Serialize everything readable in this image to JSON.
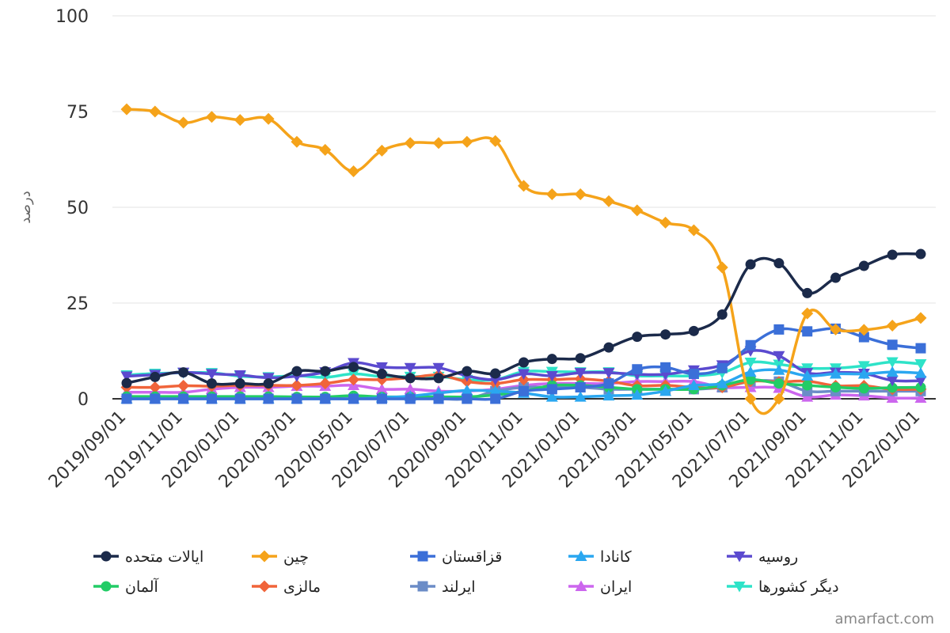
{
  "chart_data": {
    "type": "line",
    "title": "",
    "xlabel": "",
    "ylabel": "درصد",
    "ylim": [
      0,
      100
    ],
    "yticks": [
      0,
      25,
      50,
      75,
      100
    ],
    "grid": true,
    "legend_position": "bottom",
    "credit": "amarfact.com",
    "x": [
      "2019/09/01",
      "2019/10/01",
      "2019/11/01",
      "2019/12/01",
      "2020/01/01",
      "2020/02/01",
      "2020/03/01",
      "2020/04/01",
      "2020/05/01",
      "2020/06/01",
      "2020/07/01",
      "2020/08/01",
      "2020/09/01",
      "2020/10/01",
      "2020/11/01",
      "2020/12/01",
      "2021/01/01",
      "2021/02/01",
      "2021/03/01",
      "2021/04/01",
      "2021/05/01",
      "2021/06/01",
      "2021/07/01",
      "2021/08/01",
      "2021/09/01",
      "2021/10/01",
      "2021/11/01",
      "2021/12/01",
      "2022/01/01"
    ],
    "xtick_labels": [
      "2019/09/01",
      "2019/11/01",
      "2020/01/01",
      "2020/03/01",
      "2020/05/01",
      "2020/07/01",
      "2020/09/01",
      "2020/11/01",
      "2021/01/01",
      "2021/03/01",
      "2021/05/01",
      "2021/07/01",
      "2021/09/01",
      "2021/11/01",
      "2022/01/01"
    ],
    "series": [
      {
        "name": "ایالات متحده",
        "color": "#1b2a4a",
        "marker": "circle",
        "values": [
          4.1,
          5.7,
          6.9,
          4.0,
          4.0,
          4.0,
          7.2,
          7.2,
          8.3,
          6.5,
          5.4,
          5.4,
          7.2,
          6.6,
          9.5,
          10.4,
          10.6,
          13.4,
          16.2,
          16.8,
          17.7,
          22.0,
          35.1,
          35.4,
          27.6,
          31.6,
          34.7,
          37.6,
          37.8
        ]
      },
      {
        "name": "چین",
        "color": "#f5a31a",
        "marker": "diamond",
        "values": [
          75.6,
          75.0,
          72.1,
          73.6,
          72.8,
          73.1,
          67.1,
          65.0,
          59.4,
          64.8,
          66.8,
          66.8,
          67.1,
          67.3,
          55.6,
          53.4,
          53.4,
          51.6,
          49.2,
          46.0,
          44.0,
          34.3,
          0.0,
          0.0,
          22.3,
          18.1,
          18.0,
          19.1,
          21.1
        ]
      },
      {
        "name": "قزاقستان",
        "color": "#3b6fd8",
        "marker": "square",
        "values": [
          0.0,
          0.0,
          0.0,
          0.0,
          0.0,
          0.0,
          0.0,
          0.0,
          0.0,
          0.0,
          0.0,
          0.0,
          0.0,
          0.0,
          2.0,
          2.5,
          3.0,
          4.0,
          7.7,
          8.2,
          6.5,
          8.0,
          14.0,
          18.1,
          17.6,
          18.3,
          16.1,
          14.1,
          13.2
        ]
      },
      {
        "name": "کانادا",
        "color": "#2aa7f0",
        "marker": "triangle",
        "values": [
          0.0,
          0.0,
          0.0,
          0.0,
          0.0,
          0.0,
          0.0,
          0.0,
          0.0,
          0.3,
          0.7,
          1.5,
          2.2,
          2.0,
          1.5,
          0.5,
          0.5,
          0.8,
          1.0,
          2.0,
          3.5,
          4.0,
          7.0,
          7.5,
          6.0,
          6.5,
          6.5,
          7.0,
          6.7
        ]
      },
      {
        "name": "روسیه",
        "color": "#5b4acf",
        "marker": "triangle-down",
        "values": [
          5.9,
          6.3,
          6.9,
          6.5,
          6.2,
          5.5,
          5.9,
          7.0,
          9.4,
          8.3,
          8.1,
          8.1,
          6.0,
          5.0,
          6.5,
          6.0,
          6.8,
          6.8,
          6.4,
          6.4,
          7.5,
          8.8,
          12.5,
          11.2,
          6.8,
          6.9,
          6.6,
          4.8,
          4.7
        ]
      },
      {
        "name": "آلمان",
        "color": "#22cc66",
        "marker": "circle",
        "values": [
          0.6,
          0.6,
          0.6,
          0.6,
          0.6,
          0.6,
          0.5,
          0.5,
          0.8,
          0.5,
          0.5,
          0.5,
          0.5,
          1.0,
          2.0,
          3.5,
          3.5,
          3.0,
          2.5,
          2.5,
          2.5,
          3.5,
          5.0,
          4.0,
          3.5,
          3.0,
          2.7,
          2.9,
          3.0
        ]
      },
      {
        "name": "مالزی",
        "color": "#f0643a",
        "marker": "diamond",
        "values": [
          3.0,
          3.0,
          3.4,
          3.3,
          3.5,
          3.5,
          3.5,
          4.0,
          5.0,
          5.0,
          5.5,
          6.2,
          4.5,
          4.0,
          5.0,
          5.0,
          5.2,
          4.6,
          3.4,
          3.5,
          3.0,
          3.0,
          4.6,
          4.4,
          4.6,
          3.4,
          3.4,
          2.5,
          2.5
        ]
      },
      {
        "name": "ایرلند",
        "color": "#6b8cc7",
        "marker": "square",
        "values": [
          0.0,
          0.0,
          0.0,
          0.0,
          0.0,
          0.0,
          0.0,
          0.0,
          0.0,
          0.0,
          0.0,
          0.0,
          0.0,
          2.0,
          3.0,
          3.0,
          3.0,
          2.5,
          2.5,
          2.5,
          2.5,
          3.0,
          4.5,
          4.5,
          2.0,
          2.0,
          2.0,
          2.0,
          2.0
        ]
      },
      {
        "name": "ایران",
        "color": "#cc66ee",
        "marker": "triangle",
        "values": [
          1.7,
          1.7,
          1.7,
          2.5,
          3.0,
          3.0,
          3.3,
          3.3,
          3.5,
          2.5,
          2.5,
          2.0,
          2.0,
          2.5,
          3.5,
          4.0,
          4.0,
          4.0,
          4.5,
          4.5,
          4.5,
          3.0,
          3.0,
          2.8,
          0.5,
          1.0,
          0.8,
          0.2,
          0.2
        ]
      },
      {
        "name": "دیگر کشورها",
        "color": "#2ee3c8",
        "marker": "triangle-down",
        "values": [
          6.2,
          6.6,
          6.8,
          6.8,
          5.9,
          5.7,
          6.0,
          5.6,
          6.5,
          5.8,
          5.8,
          5.8,
          5.0,
          5.0,
          7.1,
          7.1,
          7.0,
          7.0,
          6.0,
          6.0,
          6.0,
          6.8,
          9.5,
          9.0,
          8.0,
          8.0,
          8.6,
          9.6,
          9.1
        ]
      }
    ]
  }
}
